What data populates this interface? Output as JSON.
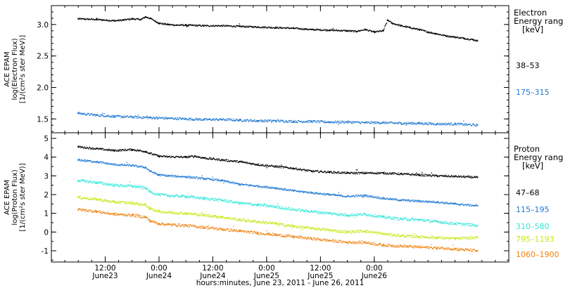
{
  "chart_data": [
    {
      "type": "scatter",
      "ylabel_lines": [
        "ACE EPAM",
        "log(Electron Flux)",
        "[1/(cm²s ster MeV)]"
      ],
      "ylim": [
        1.28,
        3.3
      ],
      "yticks": [
        1.5,
        2.0,
        2.5,
        3.0
      ],
      "legend_title": [
        "Electron",
        "Energy ranges",
        "[keV]"
      ],
      "series": [
        {
          "name": "38–53",
          "color": "#000000",
          "points": [
            [
              0,
              3.09
            ],
            [
              4,
              3.08
            ],
            [
              8,
              3.06
            ],
            [
              10,
              3.07
            ],
            [
              12,
              3.09
            ],
            [
              14,
              3.08
            ],
            [
              15,
              3.12
            ],
            [
              16,
              3.1
            ],
            [
              18,
              3.02
            ],
            [
              20,
              3.0
            ],
            [
              22,
              2.99
            ],
            [
              24,
              2.99
            ],
            [
              28,
              2.98
            ],
            [
              32,
              2.98
            ],
            [
              36,
              2.97
            ],
            [
              40,
              2.96
            ],
            [
              44,
              2.95
            ],
            [
              48,
              2.94
            ],
            [
              52,
              2.92
            ],
            [
              56,
              2.91
            ],
            [
              60,
              2.9
            ],
            [
              62,
              2.89
            ],
            [
              64,
              2.92
            ],
            [
              66,
              2.88
            ],
            [
              68,
              2.9
            ],
            [
              69,
              3.07
            ],
            [
              70,
              3.02
            ],
            [
              72,
              2.98
            ],
            [
              74,
              2.95
            ],
            [
              76,
              2.92
            ],
            [
              78,
              2.88
            ],
            [
              80,
              2.85
            ],
            [
              82,
              2.82
            ],
            [
              84,
              2.8
            ],
            [
              86,
              2.78
            ],
            [
              88,
              2.76
            ],
            [
              89,
              2.74
            ]
          ]
        },
        {
          "name": "175–315",
          "color": "#1e78d2",
          "points": [
            [
              0,
              1.59
            ],
            [
              4,
              1.56
            ],
            [
              8,
              1.54
            ],
            [
              12,
              1.53
            ],
            [
              16,
              1.52
            ],
            [
              20,
              1.51
            ],
            [
              24,
              1.5
            ],
            [
              28,
              1.49
            ],
            [
              32,
              1.49
            ],
            [
              36,
              1.48
            ],
            [
              40,
              1.47
            ],
            [
              44,
              1.47
            ],
            [
              48,
              1.46
            ],
            [
              52,
              1.46
            ],
            [
              56,
              1.45
            ],
            [
              60,
              1.45
            ],
            [
              64,
              1.44
            ],
            [
              68,
              1.44
            ],
            [
              72,
              1.43
            ],
            [
              76,
              1.43
            ],
            [
              80,
              1.42
            ],
            [
              84,
              1.42
            ],
            [
              89,
              1.4
            ]
          ]
        }
      ]
    },
    {
      "type": "scatter",
      "ylabel_lines": [
        "ACE EPAM",
        "log(Proton Flux)",
        "[1/(cm²s ster MeV)]"
      ],
      "ylim": [
        -1.6,
        5.3
      ],
      "yticks": [
        -1,
        0,
        1,
        2,
        3,
        4,
        5
      ],
      "legend_title": [
        "Proton",
        "Energy ranges",
        "[keV]"
      ],
      "series": [
        {
          "name": "47–68",
          "color": "#000000",
          "points": [
            [
              0,
              4.55
            ],
            [
              4,
              4.45
            ],
            [
              8,
              4.35
            ],
            [
              12,
              4.4
            ],
            [
              15,
              4.3
            ],
            [
              16,
              4.2
            ],
            [
              18,
              4.05
            ],
            [
              20,
              4.02
            ],
            [
              24,
              4.0
            ],
            [
              26,
              4.05
            ],
            [
              28,
              3.95
            ],
            [
              32,
              3.85
            ],
            [
              36,
              3.75
            ],
            [
              40,
              3.6
            ],
            [
              44,
              3.5
            ],
            [
              48,
              3.4
            ],
            [
              52,
              3.25
            ],
            [
              56,
              3.2
            ],
            [
              60,
              3.15
            ],
            [
              64,
              3.15
            ],
            [
              68,
              3.15
            ],
            [
              72,
              3.1
            ],
            [
              76,
              3.05
            ],
            [
              80,
              3.0
            ],
            [
              84,
              2.97
            ],
            [
              89,
              2.92
            ]
          ]
        },
        {
          "name": "115–195",
          "color": "#1e78d2",
          "points": [
            [
              0,
              3.85
            ],
            [
              4,
              3.75
            ],
            [
              8,
              3.6
            ],
            [
              12,
              3.55
            ],
            [
              15,
              3.45
            ],
            [
              16,
              3.25
            ],
            [
              18,
              3.05
            ],
            [
              20,
              3.0
            ],
            [
              24,
              2.95
            ],
            [
              28,
              2.85
            ],
            [
              32,
              2.75
            ],
            [
              36,
              2.55
            ],
            [
              40,
              2.45
            ],
            [
              44,
              2.35
            ],
            [
              48,
              2.2
            ],
            [
              52,
              2.1
            ],
            [
              56,
              2.0
            ],
            [
              60,
              1.9
            ],
            [
              64,
              1.95
            ],
            [
              68,
              1.8
            ],
            [
              72,
              1.7
            ],
            [
              76,
              1.65
            ],
            [
              80,
              1.6
            ],
            [
              84,
              1.5
            ],
            [
              89,
              1.4
            ]
          ]
        },
        {
          "name": "310–580",
          "color": "#2ee8d8",
          "points": [
            [
              0,
              2.75
            ],
            [
              4,
              2.65
            ],
            [
              8,
              2.5
            ],
            [
              12,
              2.45
            ],
            [
              15,
              2.35
            ],
            [
              16,
              2.15
            ],
            [
              18,
              2.0
            ],
            [
              20,
              1.95
            ],
            [
              24,
              1.9
            ],
            [
              28,
              1.8
            ],
            [
              32,
              1.7
            ],
            [
              36,
              1.55
            ],
            [
              40,
              1.45
            ],
            [
              44,
              1.35
            ],
            [
              48,
              1.2
            ],
            [
              52,
              1.1
            ],
            [
              56,
              1.0
            ],
            [
              60,
              0.9
            ],
            [
              64,
              0.95
            ],
            [
              68,
              0.8
            ],
            [
              72,
              0.7
            ],
            [
              76,
              0.65
            ],
            [
              80,
              0.55
            ],
            [
              84,
              0.45
            ],
            [
              89,
              0.35
            ]
          ]
        },
        {
          "name": "795–1193",
          "color": "#c8e614",
          "points": [
            [
              0,
              1.85
            ],
            [
              4,
              1.75
            ],
            [
              8,
              1.6
            ],
            [
              12,
              1.55
            ],
            [
              15,
              1.45
            ],
            [
              16,
              1.25
            ],
            [
              18,
              1.1
            ],
            [
              20,
              1.05
            ],
            [
              24,
              1.0
            ],
            [
              28,
              0.9
            ],
            [
              32,
              0.8
            ],
            [
              36,
              0.65
            ],
            [
              40,
              0.55
            ],
            [
              44,
              0.45
            ],
            [
              48,
              0.3
            ],
            [
              52,
              0.2
            ],
            [
              56,
              0.1
            ],
            [
              60,
              0.0
            ],
            [
              64,
              0.05
            ],
            [
              68,
              -0.1
            ],
            [
              72,
              -0.2
            ],
            [
              76,
              -0.25
            ],
            [
              80,
              -0.3
            ],
            [
              84,
              -0.35
            ],
            [
              89,
              -0.3
            ]
          ]
        },
        {
          "name": "1060–1900",
          "color": "#f0820f",
          "points": [
            [
              0,
              1.2
            ],
            [
              4,
              1.1
            ],
            [
              8,
              0.95
            ],
            [
              12,
              0.9
            ],
            [
              15,
              0.8
            ],
            [
              16,
              0.6
            ],
            [
              18,
              0.45
            ],
            [
              20,
              0.4
            ],
            [
              24,
              0.35
            ],
            [
              28,
              0.25
            ],
            [
              32,
              0.15
            ],
            [
              36,
              0.05
            ],
            [
              40,
              -0.05
            ],
            [
              44,
              -0.15
            ],
            [
              48,
              -0.25
            ],
            [
              52,
              -0.35
            ],
            [
              56,
              -0.45
            ],
            [
              60,
              -0.55
            ],
            [
              64,
              -0.55
            ],
            [
              68,
              -0.7
            ],
            [
              72,
              -0.75
            ],
            [
              76,
              -0.8
            ],
            [
              80,
              -0.85
            ],
            [
              84,
              -0.9
            ],
            [
              89,
              -1.0
            ]
          ]
        }
      ]
    }
  ],
  "x_axis": {
    "xlim": [
      -6,
      96
    ],
    "ticks": [
      {
        "x": 6,
        "time": "12:00",
        "date": "June23"
      },
      {
        "x": 18,
        "time": "0:00",
        "date": "June24"
      },
      {
        "x": 30,
        "time": "12:00",
        "date": "June24"
      },
      {
        "x": 42,
        "time": "0:00",
        "date": "June25"
      },
      {
        "x": 54,
        "time": "12:00",
        "date": "June25"
      },
      {
        "x": 66,
        "time": "0:00",
        "date": "June26"
      }
    ],
    "label": "hours:minutes, June 23, 2011 - June 26, 2011"
  }
}
